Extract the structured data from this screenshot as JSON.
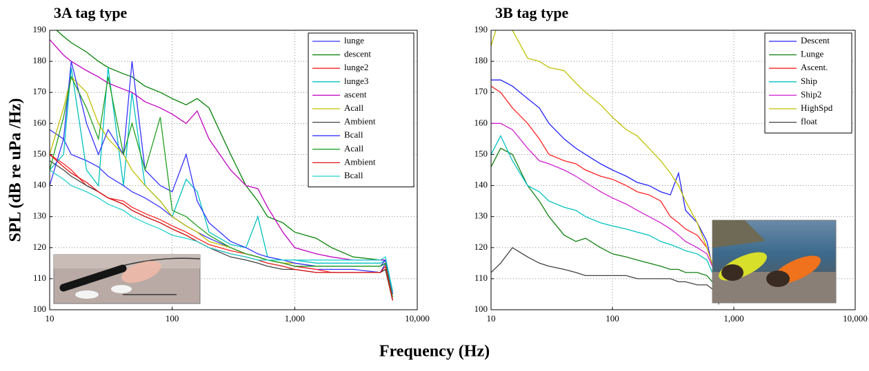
{
  "xlabel": "Frequency (Hz)",
  "chart_data": [
    {
      "type": "line",
      "title": "3A tag type",
      "ylabel": "SPL (dB re uPa /Hz)",
      "log_x": true,
      "grid": true,
      "legend": "upper right",
      "xlim": [
        10,
        10000
      ],
      "xticks": [
        10,
        100,
        {
          "value": 1000,
          "label": "1,000"
        },
        {
          "value": 10000,
          "label": "10,000"
        }
      ],
      "ylim": [
        100,
        190
      ],
      "yticks": [
        100,
        110,
        120,
        130,
        140,
        150,
        160,
        170,
        180,
        190
      ],
      "x": [
        10,
        13,
        15,
        20,
        25,
        30,
        40,
        47,
        60,
        80,
        100,
        130,
        160,
        200,
        300,
        400,
        500,
        600,
        800,
        1000,
        1500,
        2000,
        3000,
        5000,
        5500,
        6300
      ],
      "series": [
        {
          "name": "lunge",
          "color": "#3333ff",
          "values": [
            158,
            155,
            150,
            148,
            146,
            143,
            140,
            138,
            136,
            133,
            130,
            127,
            125,
            123,
            120,
            118,
            117,
            116,
            115,
            114,
            113,
            113,
            113,
            112,
            115,
            105
          ]
        },
        {
          "name": "descent",
          "color": "#008000",
          "values": [
            192,
            188,
            186,
            183,
            180,
            178,
            176,
            175,
            172,
            170,
            168,
            166,
            168,
            165,
            150,
            140,
            135,
            130,
            128,
            125,
            123,
            120,
            117,
            116,
            116,
            105
          ]
        },
        {
          "name": "lunge2",
          "color": "#ff2020",
          "values": [
            150,
            147,
            145,
            140,
            138,
            136,
            135,
            133,
            131,
            129,
            127,
            125,
            123,
            121,
            119,
            118,
            117,
            116,
            115,
            114,
            113,
            112,
            112,
            112,
            113,
            103
          ]
        },
        {
          "name": "lunge3",
          "color": "#00c0c0",
          "values": [
            145,
            150,
            178,
            145,
            140,
            178,
            140,
            170,
            140,
            135,
            130,
            142,
            138,
            125,
            121,
            120,
            130,
            117,
            116,
            116,
            115,
            115,
            115,
            115,
            116,
            105
          ]
        },
        {
          "name": "ascent",
          "color": "#c000c0",
          "values": [
            187,
            182,
            180,
            177,
            175,
            173,
            171,
            170,
            167,
            165,
            163,
            160,
            164,
            155,
            145,
            140,
            139,
            133,
            125,
            120,
            118,
            117,
            116,
            116,
            116,
            106
          ]
        },
        {
          "name": "Acall",
          "color": "#c0c000",
          "values": [
            150,
            165,
            175,
            170,
            160,
            155,
            150,
            145,
            140,
            135,
            130,
            127,
            125,
            122,
            120,
            118,
            117,
            116,
            115,
            115,
            114,
            114,
            114,
            114,
            115,
            104
          ]
        },
        {
          "name": "Ambient",
          "color": "#404040",
          "values": [
            148,
            145,
            143,
            140,
            138,
            136,
            134,
            132,
            130,
            128,
            126,
            124,
            122,
            120,
            117,
            116,
            115,
            114,
            113,
            113,
            112,
            112,
            112,
            112,
            113,
            103
          ]
        },
        {
          "name": "Bcall",
          "color": "#3333ff",
          "values": [
            140,
            155,
            180,
            160,
            150,
            158,
            150,
            180,
            145,
            140,
            138,
            150,
            135,
            128,
            122,
            120,
            118,
            117,
            116,
            115,
            114,
            114,
            114,
            114,
            116,
            105
          ]
        },
        {
          "name": "Acall",
          "color": "#20a020",
          "values": [
            145,
            162,
            175,
            165,
            155,
            175,
            150,
            160,
            145,
            162,
            132,
            130,
            127,
            124,
            120,
            118,
            117,
            116,
            115,
            114,
            114,
            114,
            114,
            114,
            115,
            104
          ]
        },
        {
          "name": "Ambient",
          "color": "#e01010",
          "values": [
            150,
            146,
            144,
            141,
            138,
            136,
            134,
            132,
            130,
            128,
            126,
            124,
            122,
            120,
            118,
            117,
            116,
            115,
            114,
            113,
            112,
            112,
            112,
            112,
            114,
            103
          ]
        },
        {
          "name": "Bcall",
          "color": "#20d0d0",
          "values": [
            145,
            142,
            140,
            138,
            136,
            134,
            132,
            130,
            128,
            126,
            124,
            123,
            122,
            120,
            118,
            117,
            116,
            116,
            116,
            116,
            116,
            116,
            116,
            116,
            117,
            106
          ]
        }
      ]
    },
    {
      "type": "line",
      "title": "3B tag type",
      "log_x": true,
      "grid": true,
      "legend": "upper right",
      "xlim": [
        10,
        10000
      ],
      "xticks": [
        10,
        100,
        {
          "value": 1000,
          "label": "1,000"
        },
        {
          "value": 10000,
          "label": "10,000"
        }
      ],
      "ylim": [
        100,
        190
      ],
      "yticks": [
        100,
        110,
        120,
        130,
        140,
        150,
        160,
        170,
        180,
        190
      ],
      "x": [
        10,
        12,
        15,
        20,
        25,
        30,
        40,
        50,
        60,
        80,
        100,
        130,
        160,
        200,
        250,
        300,
        350,
        400,
        500,
        600,
        700,
        750,
        800
      ],
      "series": [
        {
          "name": "Descent",
          "color": "#2020ff",
          "values": [
            174,
            174,
            172,
            168,
            165,
            160,
            155,
            152,
            150,
            147,
            145,
            143,
            141,
            140,
            138,
            137,
            144,
            132,
            128,
            122,
            110,
            105,
            108
          ]
        },
        {
          "name": "Lunge",
          "color": "#108010",
          "values": [
            146,
            152,
            150,
            140,
            135,
            130,
            124,
            122,
            123,
            120,
            118,
            117,
            116,
            115,
            114,
            113,
            113,
            112,
            112,
            111,
            108,
            103,
            105
          ]
        },
        {
          "name": "Ascent.",
          "color": "#ff2020",
          "values": [
            172,
            170,
            165,
            160,
            155,
            150,
            148,
            147,
            145,
            143,
            142,
            140,
            138,
            137,
            135,
            130,
            128,
            126,
            124,
            120,
            112,
            104,
            107
          ]
        },
        {
          "name": "Ship",
          "color": "#00c0c0",
          "values": [
            150,
            156,
            148,
            140,
            138,
            135,
            133,
            132,
            130,
            128,
            127,
            126,
            125,
            124,
            122,
            121,
            120,
            119,
            118,
            116,
            110,
            104,
            107
          ]
        },
        {
          "name": "Ship2",
          "color": "#d020d0",
          "values": [
            160,
            160,
            158,
            152,
            148,
            147,
            145,
            143,
            141,
            138,
            136,
            134,
            132,
            130,
            128,
            126,
            124,
            122,
            120,
            118,
            112,
            104,
            106
          ]
        },
        {
          "name": "HighSpd",
          "color": "#c0c000",
          "values": [
            185,
            195,
            190,
            181,
            180,
            178,
            177,
            173,
            170,
            166,
            162,
            158,
            156,
            152,
            148,
            144,
            140,
            135,
            128,
            120,
            112,
            104,
            107
          ]
        },
        {
          "name": "float",
          "color": "#404040",
          "values": [
            112,
            115,
            120,
            117,
            115,
            114,
            113,
            112,
            111,
            111,
            111,
            111,
            110,
            110,
            110,
            110,
            109,
            109,
            108,
            108,
            106,
            102,
            106
          ]
        }
      ]
    }
  ]
}
